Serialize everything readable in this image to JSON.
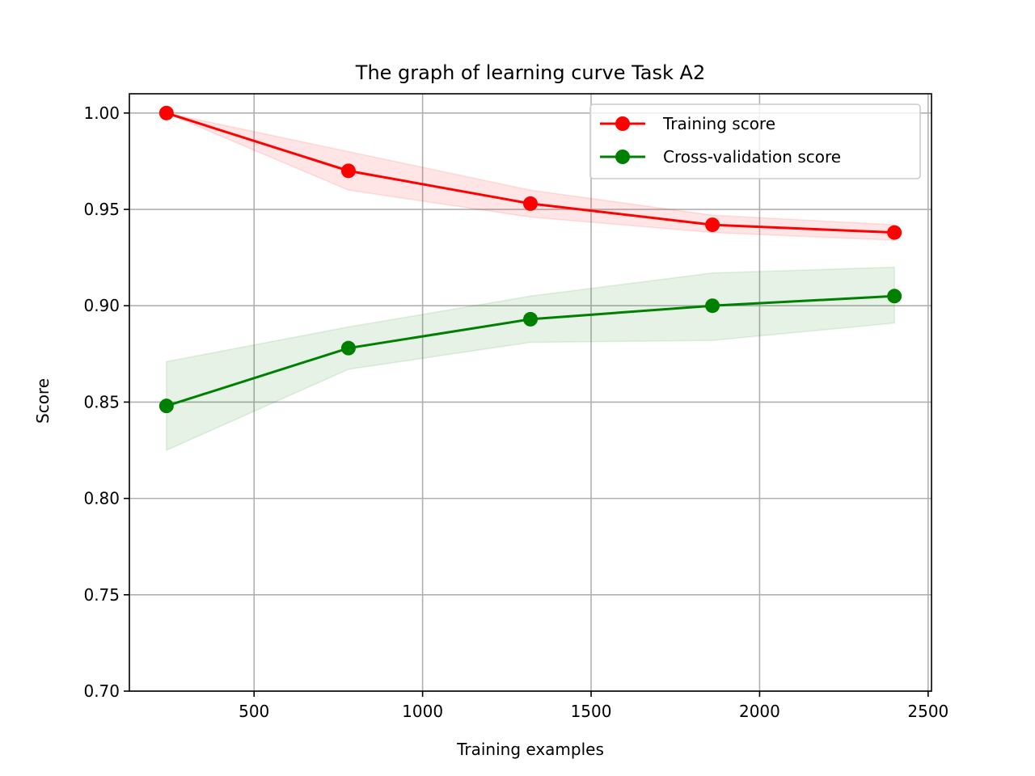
{
  "chart_data": {
    "type": "line",
    "title": "The graph of learning curve Task A2",
    "xlabel": "Training examples",
    "ylabel": "Score",
    "xlim": [
      130,
      2510
    ],
    "ylim": [
      0.7,
      1.01
    ],
    "xticks": [
      500,
      1000,
      1500,
      2000,
      2500
    ],
    "xtick_labels": [
      "500",
      "1000",
      "1500",
      "2000",
      "2500"
    ],
    "yticks": [
      0.7,
      0.75,
      0.8,
      0.85,
      0.9,
      0.95,
      1.0
    ],
    "ytick_labels": [
      "0.70",
      "0.75",
      "0.80",
      "0.85",
      "0.90",
      "0.95",
      "1.00"
    ],
    "grid": true,
    "legend_position": "top-right",
    "x": [
      240,
      780,
      1320,
      1860,
      2400
    ],
    "series": [
      {
        "name": "Training score",
        "color": "#ff0000",
        "band_color": "#ff0000",
        "values": [
          1.0,
          0.97,
          0.953,
          0.942,
          0.938
        ],
        "band_lower": [
          1.0,
          0.96,
          0.946,
          0.938,
          0.934
        ],
        "band_upper": [
          1.0,
          0.98,
          0.96,
          0.947,
          0.942
        ]
      },
      {
        "name": "Cross-validation score",
        "color": "#008000",
        "band_color": "#008000",
        "values": [
          0.848,
          0.878,
          0.893,
          0.9,
          0.905
        ],
        "band_lower": [
          0.825,
          0.867,
          0.881,
          0.882,
          0.891
        ],
        "band_upper": [
          0.871,
          0.889,
          0.905,
          0.917,
          0.92
        ]
      }
    ]
  }
}
